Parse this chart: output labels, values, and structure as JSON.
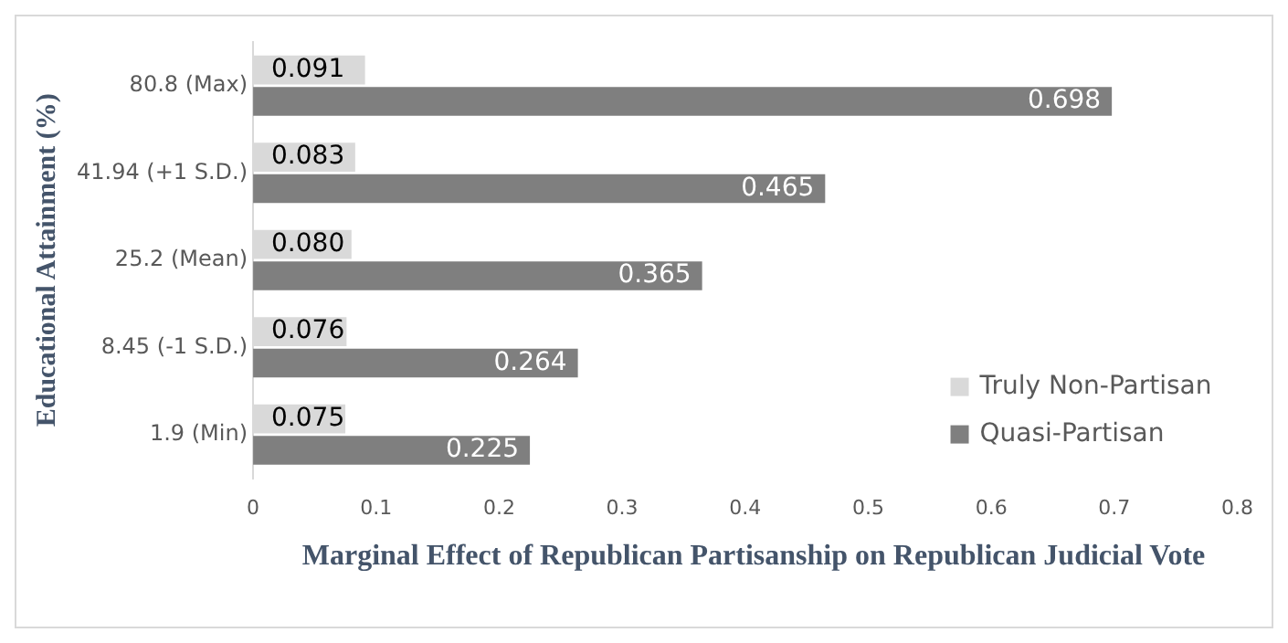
{
  "chart_data": {
    "type": "bar",
    "orientation": "horizontal",
    "xlabel": "Marginal Effect of Republican Partisanship on Republican Judicial Vote",
    "ylabel": "Educational Attainment (%)",
    "categories": [
      "80.8 (Max)",
      "41.94 (+1 S.D.)",
      "25.2 (Mean)",
      "8.45 (-1 S.D.)",
      "1.9 (Min)"
    ],
    "series": [
      {
        "name": "Truly Non-Partisan",
        "color": "#d9d9d9",
        "values": [
          0.091,
          0.083,
          0.08,
          0.076,
          0.075
        ],
        "value_labels": [
          "0.091",
          "0.083",
          "0.080",
          "0.076",
          "0.075"
        ]
      },
      {
        "name": "Quasi-Partisan",
        "color": "#7f7f7f",
        "values": [
          0.698,
          0.465,
          0.365,
          0.264,
          0.225
        ],
        "value_labels": [
          "0.698",
          "0.465",
          "0.365",
          "0.264",
          "0.225"
        ]
      }
    ],
    "xlim": [
      0,
      0.8
    ],
    "xticks": [
      0,
      0.1,
      0.2,
      0.3,
      0.4,
      0.5,
      0.6,
      0.7,
      0.8
    ],
    "grid": false,
    "legend": "bottom right"
  }
}
